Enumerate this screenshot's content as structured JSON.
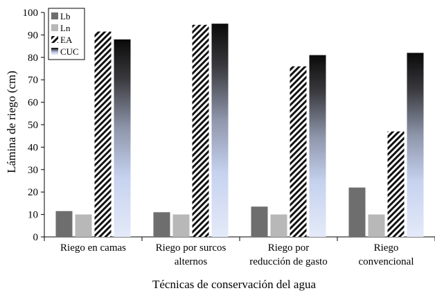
{
  "chart_data": {
    "type": "bar",
    "title": "",
    "xlabel": "Técnicas de conservación del agua",
    "ylabel": "Lámina de riego (cm)",
    "ylim": [
      0,
      100
    ],
    "yticks": [
      0,
      10,
      20,
      30,
      40,
      50,
      60,
      70,
      80,
      90,
      100
    ],
    "grid": false,
    "legend_position": "top-left",
    "categories": [
      [
        "Riego en camas"
      ],
      [
        "Riego por surcos",
        "alternos"
      ],
      [
        "Riego por",
        "reducción de gasto"
      ],
      [
        "Riego",
        "convencional"
      ]
    ],
    "series": [
      {
        "name": "Lb",
        "values": [
          11.5,
          11,
          13.5,
          22
        ],
        "fill": "solid",
        "color": "#6e6e6e"
      },
      {
        "name": "Ln",
        "values": [
          10,
          10,
          10,
          10
        ],
        "fill": "solid",
        "color": "#b8b8b8"
      },
      {
        "name": "EA",
        "values": [
          91.5,
          94.5,
          76,
          47
        ],
        "fill": "diagonal-hatch",
        "color": "#111111"
      },
      {
        "name": "CUC",
        "values": [
          88,
          95,
          81,
          82
        ],
        "fill": "gradient",
        "color_top": "#0a0a0a",
        "color_bottom": "#c8d4f0"
      }
    ]
  }
}
